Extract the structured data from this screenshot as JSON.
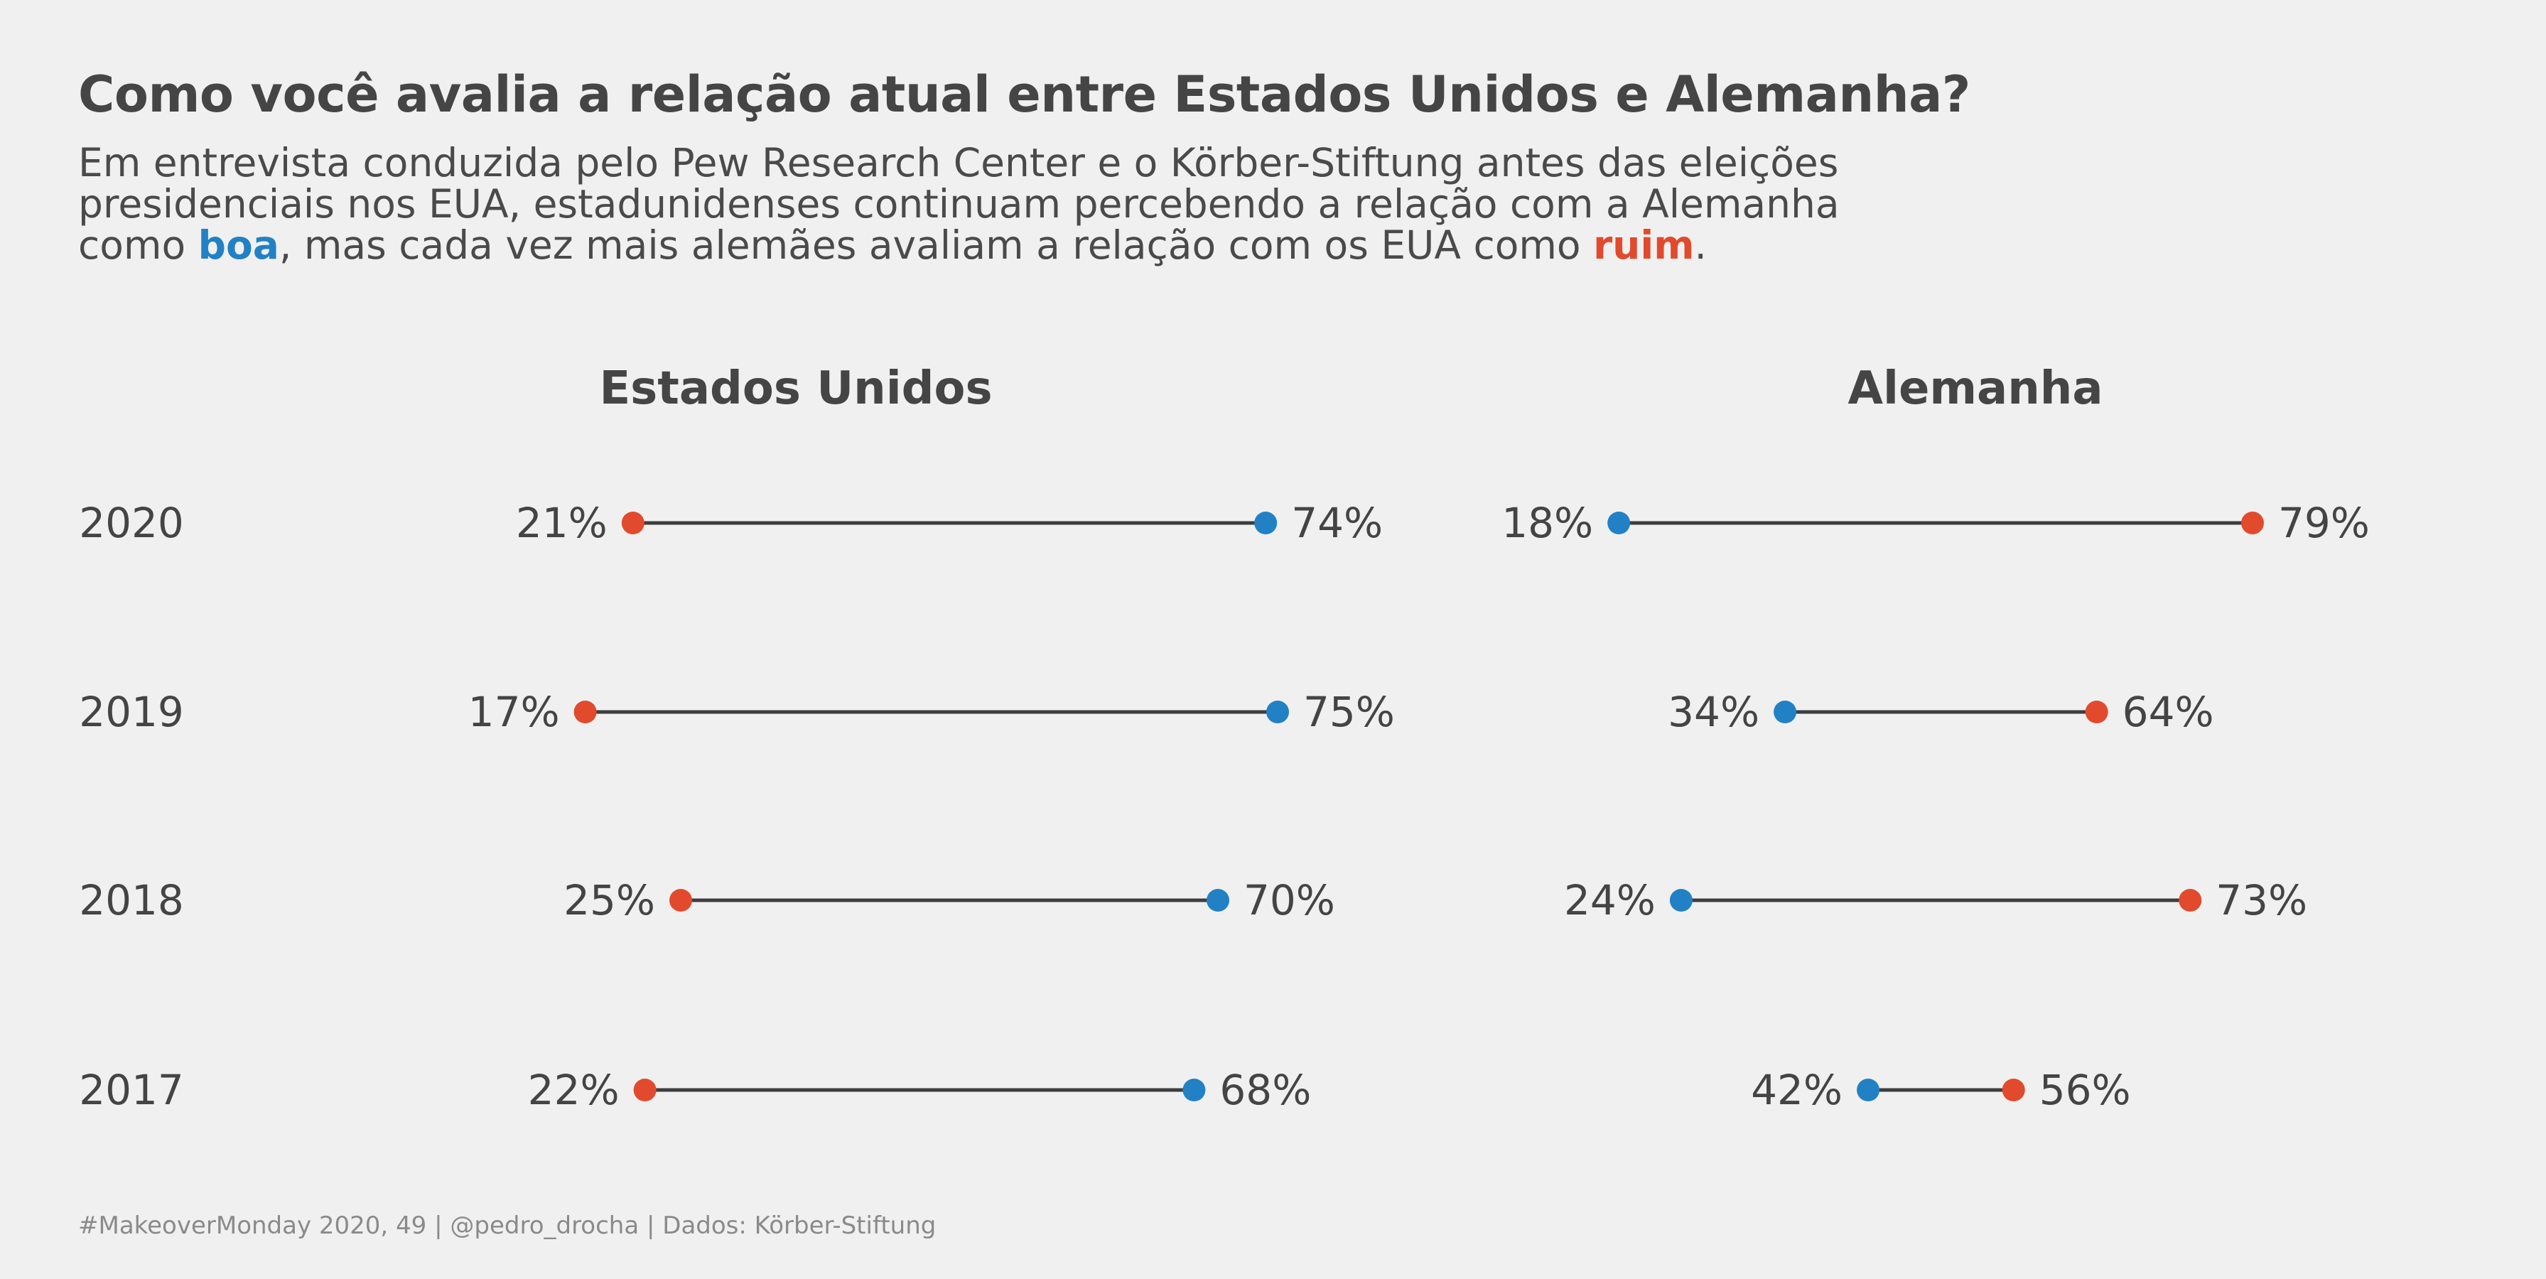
{
  "title": "Como você avalia a relação atual entre Estados Unidos e Alemanha?",
  "subtitle": {
    "line1": "Em entrevista conduzida pelo Pew Research Center e o Körber-Stiftung antes das eleições",
    "line2": "presidenciais nos EUA, estadunidenses continuam percebendo a relação com a Alemanha",
    "line3_part1": "como ",
    "good_word": "boa",
    "line3_part2": ", mas cada vez mais alemães avaliam a relação com os EUA como ",
    "bad_word": "ruim",
    "line3_part3": "."
  },
  "colors": {
    "good": "#2281c4",
    "bad": "#e24a2d",
    "line": "#3d3d3d",
    "text": "#444444"
  },
  "caption": "#MakeoverMonday 2020, 49 | @pedro_drocha | Dados: Körber-Stiftung",
  "chart_data": {
    "type": "dumbbell",
    "years": [
      "2020",
      "2019",
      "2018",
      "2017"
    ],
    "unit": "%",
    "panels": [
      {
        "title": "Estados Unidos",
        "rows": [
          {
            "year": "2020",
            "ruim": 21,
            "boa": 74
          },
          {
            "year": "2019",
            "ruim": 17,
            "boa": 75
          },
          {
            "year": "2018",
            "ruim": 25,
            "boa": 70
          },
          {
            "year": "2017",
            "ruim": 22,
            "boa": 68
          }
        ]
      },
      {
        "title": "Alemanha",
        "rows": [
          {
            "year": "2020",
            "boa": 18,
            "ruim": 79
          },
          {
            "year": "2019",
            "boa": 34,
            "ruim": 64
          },
          {
            "year": "2018",
            "boa": 24,
            "ruim": 73
          },
          {
            "year": "2017",
            "boa": 42,
            "ruim": 56
          }
        ]
      }
    ]
  }
}
